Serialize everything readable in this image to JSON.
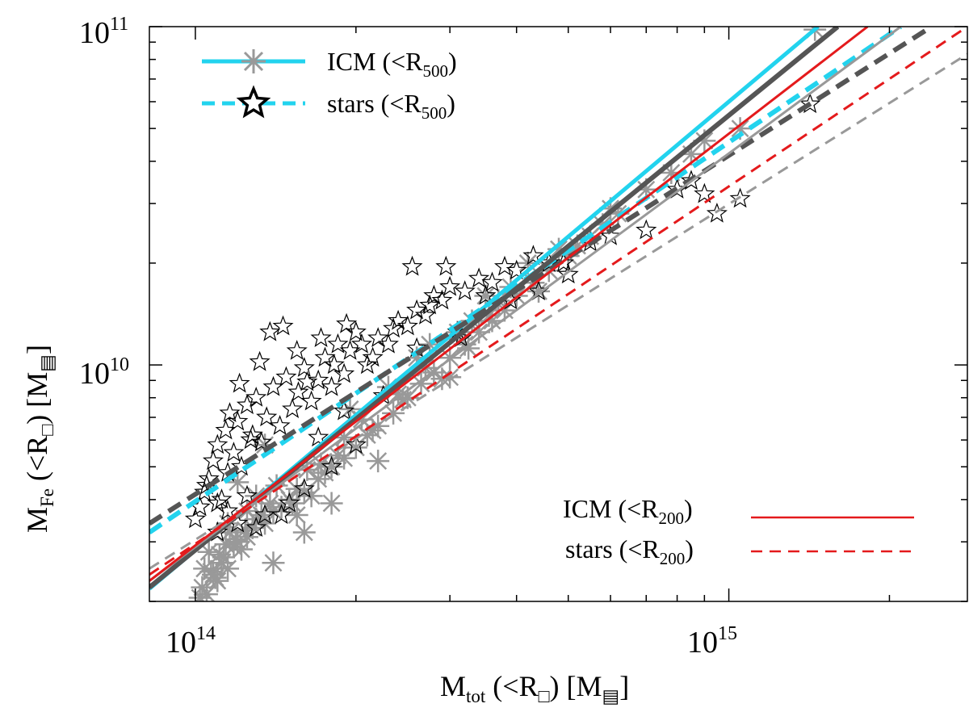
{
  "chart_data": {
    "type": "scatter",
    "x_scale": "log",
    "y_scale": "log",
    "xlim": [
      82000000000000.0,
      2800000000000000.0
    ],
    "ylim": [
      2000000000.0,
      100000000000.0
    ],
    "xlabel": {
      "main": "M",
      "sub": "tot",
      "rest": " (<R",
      "sub2": "□",
      "unit_open": ") [M",
      "unit_sub": "▤",
      "unit_close": "]"
    },
    "ylabel": {
      "main": "M",
      "sub": "Fe",
      "rest": " (<R",
      "sub2": "□",
      "unit_open": ") [M",
      "unit_sub": "▤",
      "unit_close": "]"
    },
    "x_ticks": [
      {
        "value": 100000000000000.0,
        "base": "10",
        "exp": "14"
      },
      {
        "value": 1000000000000000.0,
        "base": "10",
        "exp": "15"
      }
    ],
    "y_ticks": [
      {
        "value": 10000000000.0,
        "base": "10",
        "exp": "10"
      },
      {
        "value": 100000000000.0,
        "base": "10",
        "exp": "11"
      }
    ],
    "colors": {
      "cyan": "#22d3ee",
      "dark_gray": "#555555",
      "light_gray": "#999999",
      "red": "#e41a1c",
      "black": "#000000"
    },
    "legend": [
      {
        "id": "icm500",
        "label": "ICM (<R",
        "sub": "500",
        "close": ")",
        "marker": "asterisk",
        "line": "solid",
        "color": "#22d3ee",
        "placement": "top-left"
      },
      {
        "id": "stars500",
        "label": "stars (<R",
        "sub": "500",
        "close": ")",
        "marker": "star",
        "line": "dashed",
        "color": "#22d3ee",
        "placement": "top-left"
      },
      {
        "id": "icm200",
        "label": "ICM (<R",
        "sub": "200",
        "close": ")",
        "marker": "none",
        "line": "solid",
        "color": "#e41a1c",
        "placement": "bottom-right"
      },
      {
        "id": "stars200",
        "label": "stars (<R",
        "sub": "200",
        "close": ")",
        "marker": "none",
        "line": "dashed",
        "color": "#e41a1c",
        "placement": "bottom-right"
      }
    ],
    "fit_lines": [
      {
        "name": "ICM R500 fit (cyan)",
        "x": [
          82000000000000.0,
          1470000000000000.0
        ],
        "y": [
          2180000000.0,
          100000000000.0
        ],
        "color": "#22d3ee",
        "dash": false,
        "width": 5
      },
      {
        "name": "stars R500 fit (cyan)",
        "x": [
          82000000000000.0,
          2100000000000000.0
        ],
        "y": [
          3200000000.0,
          100000000000.0
        ],
        "color": "#22d3ee",
        "dash": true,
        "width": 6
      },
      {
        "name": "ICM dark gray fit",
        "x": [
          82000000000000.0,
          1600000000000000.0
        ],
        "y": [
          2200000000.0,
          100000000000.0
        ],
        "color": "#555555",
        "dash": false,
        "width": 6
      },
      {
        "name": "stars dark gray fit",
        "x": [
          82000000000000.0,
          2400000000000000.0
        ],
        "y": [
          3400000000.0,
          100000000000.0
        ],
        "color": "#555555",
        "dash": true,
        "width": 6
      },
      {
        "name": "ICM light gray fit",
        "x": [
          82000000000000.0,
          2100000000000000.0
        ],
        "y": [
          2300000000.0,
          100000000000.0
        ],
        "color": "#999999",
        "dash": false,
        "width": 3
      },
      {
        "name": "stars light gray fit",
        "x": [
          82000000000000.0,
          2800000000000000.0
        ],
        "y": [
          2500000000.0,
          83000000000.0
        ],
        "color": "#999999",
        "dash": true,
        "width": 3
      },
      {
        "name": "ICM R200 fit (red)",
        "x": [
          82000000000000.0,
          1820000000000000.0
        ],
        "y": [
          2300000000.0,
          100000000000.0
        ],
        "color": "#e41a1c",
        "dash": false,
        "width": 3
      },
      {
        "name": "stars R200 fit (red)",
        "x": [
          82000000000000.0,
          2800000000000000.0
        ],
        "y": [
          2400000000.0,
          100000000000.0
        ],
        "color": "#e41a1c",
        "dash": true,
        "width": 3
      }
    ],
    "icm_r500_points": {
      "x": [
        103000000000000.0,
        105000000000000.0,
        108000000000000.0,
        110000000000000.0,
        112000000000000.0,
        115000000000000.0,
        106000000000000.0,
        109000000000000.0,
        113000000000000.0,
        118000000000000.0,
        120000000000000.0,
        125000000000000.0,
        104000000000000.0,
        107000000000000.0,
        111000000000000.0,
        116000000000000.0,
        122000000000000.0,
        128000000000000.0,
        130000000000000.0,
        135000000000000.0,
        140000000000000.0,
        145000000000000.0,
        102000000000000.0,
        114000000000000.0,
        119000000000000.0,
        124000000000000.0,
        133000000000000.0,
        138000000000000.0,
        150000000000000.0,
        155000000000000.0,
        160000000000000.0,
        170000000000000.0,
        180000000000000.0,
        190000000000000.0,
        200000000000000.0,
        210000000000000.0,
        220000000000000.0,
        235000000000000.0,
        250000000000000.0,
        265000000000000.0,
        280000000000000.0,
        300000000000000.0,
        320000000000000.0,
        340000000000000.0,
        360000000000000.0,
        380000000000000.0,
        400000000000000.0,
        430000000000000.0,
        460000000000000.0,
        500000000000000.0,
        550000000000000.0,
        580000000000000.0,
        620000000000000.0,
        700000000000000.0,
        780000000000000.0,
        850000000000000.0,
        900000000000000.0,
        1050000000000000.0,
        1450000000000000.0,
        120000000000000.0,
        135000000000000.0,
        155000000000000.0,
        175000000000000.0,
        195000000000000.0,
        230000000000000.0,
        260000000000000.0,
        310000000000000.0,
        350000000000000.0,
        420000000000000.0,
        165000000000000.0,
        185000000000000.0,
        205000000000000.0,
        245000000000000.0,
        275000000000000.0,
        330000000000000.0,
        140000000000000.0,
        160000000000000.0,
        180000000000000.0,
        220000000000000.0,
        290000000000000.0,
        370000000000000.0,
        115000000000000.0,
        125000000000000.0,
        130000000000000.0,
        142000000000000.0,
        152000000000000.0,
        162000000000000.0,
        172000000000000.0,
        190000000000000.0,
        215000000000000.0,
        240000000000000.0,
        270000000000000.0,
        300000000000000.0,
        325000000000000.0,
        355000000000000.0,
        390000000000000.0,
        440000000000000.0,
        480000000000000.0,
        520000000000000.0,
        600000000000000.0
      ],
      "y": [
        2200000000.0,
        2100000000.0,
        2400000000.0,
        2300000000.0,
        2600000000.0,
        2500000000.0,
        2800000000.0,
        2350000000.0,
        2700000000.0,
        2900000000.0,
        3000000000.0,
        3100000000.0,
        2500000000.0,
        2450000000.0,
        2750000000.0,
        3200000000.0,
        2850000000.0,
        3300000000.0,
        3500000000.0,
        3400000000.0,
        3700000000.0,
        3800000000.0,
        2050000000.0,
        2950000000.0,
        3050000000.0,
        3250000000.0,
        3600000000.0,
        3900000000.0,
        4000000000.0,
        4300000000.0,
        4200000000.0,
        4600000000.0,
        5000000000.0,
        5300000000.0,
        5700000000.0,
        6200000000.0,
        6600000000.0,
        7200000000.0,
        8000000000.0,
        8800000000.0,
        9500000000.0,
        10500000000.0,
        11500000000.0,
        12500000000.0,
        13500000000.0,
        14500000000.0,
        16000000000.0,
        17500000000.0,
        19000000000.0,
        21000000000.0,
        24000000000.0,
        26000000000.0,
        28000000000.0,
        33000000000.0,
        37000000000.0,
        42000000000.0,
        46000000000.0,
        50000000000.0,
        98000000000.0,
        4500000000.0,
        5800000000.0,
        3600000000.0,
        4800000000.0,
        7400000000.0,
        8600000000.0,
        10500000000.0,
        12500000000.0,
        16000000000.0,
        20000000000.0,
        4100000000.0,
        5400000000.0,
        6900000000.0,
        7900000000.0,
        11500000000.0,
        13500000000.0,
        2600000000.0,
        3200000000.0,
        3900000000.0,
        5200000000.0,
        9100000000.0,
        15500000000.0,
        3400000000.0,
        3700000000.0,
        4100000000.0,
        4400000000.0,
        3900000000.0,
        4900000000.0,
        5100000000.0,
        6100000000.0,
        6400000000.0,
        8200000000.0,
        9800000000.0,
        9200000000.0,
        11200000000.0,
        14000000000.0,
        17000000000.0,
        16500000000.0,
        22000000000.0,
        22500000000.0,
        29000000000.0
      ]
    },
    "stars_r500_points": {
      "x": [
        100000000000000.0,
        102000000000000.0,
        104000000000000.0,
        106000000000000.0,
        108000000000000.0,
        110000000000000.0,
        112000000000000.0,
        114000000000000.0,
        116000000000000.0,
        118000000000000.0,
        120000000000000.0,
        122000000000000.0,
        125000000000000.0,
        128000000000000.0,
        130000000000000.0,
        133000000000000.0,
        136000000000000.0,
        140000000000000.0,
        144000000000000.0,
        148000000000000.0,
        152000000000000.0,
        156000000000000.0,
        160000000000000.0,
        165000000000000.0,
        170000000000000.0,
        175000000000000.0,
        180000000000000.0,
        185000000000000.0,
        190000000000000.0,
        195000000000000.0,
        200000000000000.0,
        210000000000000.0,
        220000000000000.0,
        230000000000000.0,
        240000000000000.0,
        250000000000000.0,
        260000000000000.0,
        270000000000000.0,
        280000000000000.0,
        290000000000000.0,
        300000000000000.0,
        320000000000000.0,
        340000000000000.0,
        360000000000000.0,
        380000000000000.0,
        400000000000000.0,
        430000000000000.0,
        460000000000000.0,
        500000000000000.0,
        550000000000000.0,
        600000000000000.0,
        700000000000000.0,
        800000000000000.0,
        900000000000000.0,
        1050000000000000.0,
        1420000000000000.0,
        105000000000000.0,
        110000000000000.0,
        115000000000000.0,
        121000000000000.0,
        127000000000000.0,
        132000000000000.0,
        138000000000000.0,
        146000000000000.0,
        155000000000000.0,
        162000000000000.0,
        172000000000000.0,
        182000000000000.0,
        192000000000000.0,
        205000000000000.0,
        215000000000000.0,
        235000000000000.0,
        255000000000000.0,
        275000000000000.0,
        295000000000000.0,
        315000000000000.0,
        350000000000000.0,
        390000000000000.0,
        440000000000000.0,
        490000000000000.0,
        115000000000000.0,
        125000000000000.0,
        135000000000000.0,
        150000000000000.0,
        170000000000000.0,
        190000000000000.0,
        225000000000000.0,
        260000000000000.0,
        310000000000000.0,
        110000000000000.0,
        120000000000000.0,
        130000000000000.0,
        145000000000000.0,
        160000000000000.0,
        180000000000000.0,
        200000000000000.0,
        850000000000000.0,
        950000000000000.0
      ],
      "y": [
        3500000000.0,
        3800000000.0,
        4200000000.0,
        4600000000.0,
        5200000000.0,
        5800000000.0,
        4000000000.0,
        6400000000.0,
        7200000000.0,
        5500000000.0,
        6800000000.0,
        5000000000.0,
        7600000000.0,
        6200000000.0,
        8000000000.0,
        5900000000.0,
        7000000000.0,
        8600000000.0,
        6600000000.0,
        9200000000.0,
        7400000000.0,
        8300000000.0,
        9800000000.0,
        7800000000.0,
        9000000000.0,
        10500000000.0,
        8600000000.0,
        11500000000.0,
        9400000000.0,
        11000000000.0,
        12500000000.0,
        10000000000.0,
        12000000000.0,
        11500000000.0,
        13500000000.0,
        13000000000.0,
        14500000000.0,
        14000000000.0,
        16000000000.0,
        15500000000.0,
        17000000000.0,
        16500000000.0,
        18000000000.0,
        17500000000.0,
        19500000000.0,
        19000000000.0,
        21000000000.0,
        20000000000.0,
        18500000000.0,
        23000000000.0,
        24000000000.0,
        25000000000.0,
        33000000000.0,
        32000000000.0,
        31000000000.0,
        59000000000.0,
        4400000000.0,
        3900000000.0,
        4800000000.0,
        8800000000.0,
        6000000000.0,
        10200000000.0,
        12500000000.0,
        13000000000.0,
        11000000000.0,
        8900000000.0,
        12000000000.0,
        10000000000.0,
        13200000000.0,
        11500000000.0,
        10500000000.0,
        12800000000.0,
        19500000000.0,
        15000000000.0,
        19500000000.0,
        12000000000.0,
        16000000000.0,
        15500000000.0,
        16500000000.0,
        20000000000.0,
        3700000000.0,
        4100000000.0,
        3600000000.0,
        3900000000.0,
        6100000000.0,
        7300000000.0,
        8100000000.0,
        11200000000.0,
        12500000000.0,
        3200000000.0,
        3400000000.0,
        3300000000.0,
        3600000000.0,
        4300000000.0,
        5000000000.0,
        5800000000.0,
        35000000000.0,
        28000000000.0
      ]
    }
  }
}
